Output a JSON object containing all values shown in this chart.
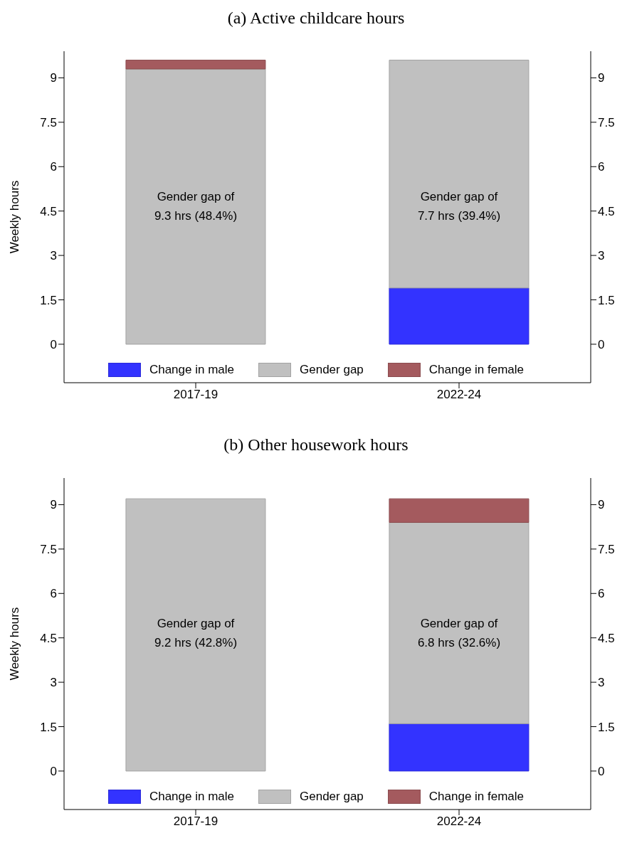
{
  "chart_data": [
    {
      "type": "bar",
      "title": "(a) Active childcare hours",
      "ylabel": "Weekly hours",
      "categories": [
        "2017-19",
        "2022-24"
      ],
      "stacked": true,
      "series": [
        {
          "name": "Change in male",
          "color": "#3333ff",
          "values": [
            null,
            1.9
          ]
        },
        {
          "name": "Gender gap",
          "color": "#c0c0c0",
          "values": [
            9.3,
            7.7
          ]
        },
        {
          "name": "Change in female",
          "color": "#a45a5e",
          "values": [
            0.3,
            null
          ]
        }
      ],
      "ylim": [
        -1.3,
        9.9
      ],
      "yticks": [
        0,
        1.5,
        3,
        4.5,
        6,
        7.5,
        9
      ],
      "y2lim": [
        -1.3,
        9.9
      ],
      "y2ticks": [
        0,
        1.5,
        3,
        4.5,
        6,
        7.5,
        9
      ],
      "grid": false,
      "legend": "bottom",
      "annotations": [
        "Gender gap of\n9.3 hrs (48.4%)",
        "Gender gap of\n7.7 hrs (39.4%)"
      ]
    },
    {
      "type": "bar",
      "title": "(b) Other housework hours",
      "ylabel": "Weekly hours",
      "categories": [
        "2017-19",
        "2022-24"
      ],
      "stacked": true,
      "series": [
        {
          "name": "Change in male",
          "color": "#3333ff",
          "values": [
            null,
            1.6
          ]
        },
        {
          "name": "Gender gap",
          "color": "#c0c0c0",
          "values": [
            9.2,
            6.8
          ]
        },
        {
          "name": "Change in female",
          "color": "#a45a5e",
          "values": [
            null,
            0.8
          ]
        }
      ],
      "ylim": [
        -1.3,
        9.9
      ],
      "yticks": [
        0,
        1.5,
        3,
        4.5,
        6,
        7.5,
        9
      ],
      "y2lim": [
        -1.3,
        9.9
      ],
      "y2ticks": [
        0,
        1.5,
        3,
        4.5,
        6,
        7.5,
        9
      ],
      "grid": false,
      "legend": "bottom",
      "annotations": [
        "Gender gap of\n9.2 hrs (42.8%)",
        "Gender gap of\n6.8 hrs (32.6%)"
      ]
    }
  ]
}
